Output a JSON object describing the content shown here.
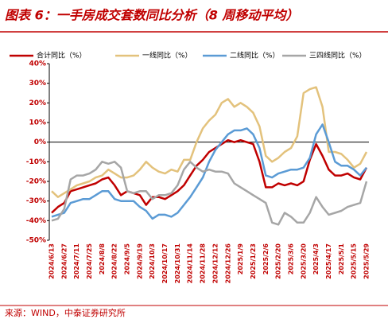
{
  "chart_data": {
    "type": "line",
    "title": "图表 6：一手房成交套数同比分析（8 周移动平均）",
    "source": "来源：WIND，中泰证券研究所",
    "categories": [
      "2024/6/13",
      null,
      "2024/6/27",
      null,
      "2024/7/11",
      null,
      "2024/7/25",
      null,
      "2024/8/8",
      null,
      "2024/8/22",
      null,
      "2024/9/5",
      null,
      "2024/9/19",
      null,
      "2024/10/3",
      null,
      "2024/10/17",
      null,
      "2024/10/31",
      null,
      "2024/11/14",
      null,
      "2024/11/28",
      null,
      "2024/12/12",
      null,
      "2024/12/26",
      null,
      "2025/1/9",
      null,
      "2025/1/23",
      null,
      "2025/2/6",
      null,
      "2025/2/20",
      null,
      "2025/3/6",
      null,
      "2025/3/20",
      null,
      "2025/4/3",
      null,
      "2025/4/17",
      null,
      "2025/5/1",
      null,
      "2025/5/15",
      null,
      "2025/5/29"
    ],
    "series": [
      {
        "name": "合计同比（%）",
        "color": "#c00000",
        "values": [
          -36,
          -33,
          -31,
          -25,
          -24,
          -23,
          -22,
          -21,
          -19,
          -18,
          -22,
          -27,
          -25,
          -26,
          -27,
          -32,
          -28,
          -28,
          -29,
          -27,
          -25,
          -22,
          -17,
          -12,
          -9,
          -5,
          -3,
          -1,
          1,
          0,
          1,
          0,
          -1,
          -10,
          -23,
          -23,
          -21,
          -22,
          -21,
          -22,
          -20,
          -9,
          -1,
          -7,
          -14,
          -17,
          -17,
          -16,
          -18,
          -19,
          -13
        ]
      },
      {
        "name": "一线同比（%）",
        "color": "#e3c27c",
        "values": [
          -25,
          -28,
          -26,
          -24,
          -22,
          -21,
          -20,
          -18,
          -17,
          -14,
          -16,
          -18,
          -18,
          -17,
          -14,
          -10,
          -13,
          -15,
          -16,
          -14,
          -15,
          -9,
          -9,
          0,
          7,
          11,
          14,
          20,
          22,
          18,
          20,
          18,
          15,
          8,
          -7,
          -10,
          -8,
          -5,
          -3,
          3,
          25,
          27,
          28,
          18,
          -5,
          -5,
          -6,
          -9,
          -13,
          -11,
          -5
        ]
      },
      {
        "name": "二线同比（%）",
        "color": "#5b9bd5",
        "values": [
          -38,
          -37,
          -36,
          -31,
          -30,
          -29,
          -29,
          -27,
          -25,
          -25,
          -29,
          -30,
          -30,
          -30,
          -33,
          -35,
          -39,
          -37,
          -37,
          -38,
          -36,
          -32,
          -28,
          -23,
          -18,
          -10,
          -4,
          0,
          4,
          6,
          6,
          7,
          4,
          -3,
          -17,
          -18,
          -16,
          -15,
          -14,
          -14,
          -13,
          -8,
          4,
          9,
          0,
          -10,
          -12,
          -12,
          -14,
          -17,
          -13
        ]
      },
      {
        "name": "三四线同比（%）",
        "color": "#a6a6a6",
        "values": [
          -40,
          -39,
          -34,
          -19,
          -17,
          -17,
          -16,
          -14,
          -10,
          -11,
          -10,
          -13,
          -25,
          -26,
          -25,
          -25,
          -29,
          -27,
          -27,
          -26,
          -22,
          -14,
          -10,
          -13,
          -15,
          -14,
          -15,
          -15,
          -16,
          -21,
          -23,
          -25,
          -27,
          -29,
          -31,
          -41,
          -42,
          -36,
          -38,
          -41,
          -41,
          -36,
          -28,
          -33,
          -37,
          -36,
          -35,
          -33,
          -32,
          -31,
          -20
        ]
      }
    ],
    "ylim": [
      -50,
      40
    ],
    "yticks": [
      {
        "value": -50,
        "label": "-50%"
      },
      {
        "value": -40,
        "label": "-40%"
      },
      {
        "value": -30,
        "label": "-30%"
      },
      {
        "value": -20,
        "label": "-20%"
      },
      {
        "value": -10,
        "label": "-10%"
      },
      {
        "value": 0,
        "label": "0%"
      },
      {
        "value": 10,
        "label": "10%"
      },
      {
        "value": 20,
        "label": "20%"
      },
      {
        "value": 30,
        "label": "30%"
      },
      {
        "value": 40,
        "label": "40%"
      }
    ]
  }
}
